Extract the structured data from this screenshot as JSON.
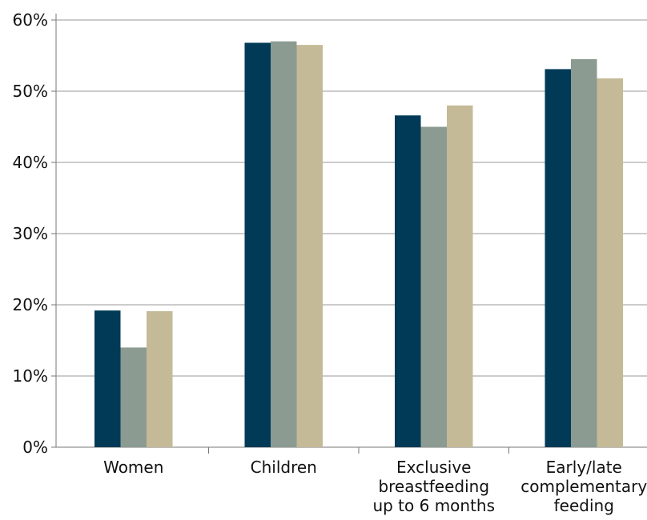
{
  "chart_data": {
    "type": "bar",
    "categories": [
      [
        "Women"
      ],
      [
        "Children"
      ],
      [
        "Exclusive",
        "breastfeeding",
        "up to 6 months"
      ],
      [
        "Early/late",
        "complementary",
        "feeding"
      ]
    ],
    "series": [
      {
        "values": [
          19.2,
          56.8,
          46.6,
          53.1
        ]
      },
      {
        "values": [
          14.0,
          57.0,
          45.0,
          54.5
        ]
      },
      {
        "values": [
          19.1,
          56.5,
          48.0,
          51.8
        ]
      }
    ],
    "ylim": [
      0,
      60
    ],
    "yticks": [
      "0%",
      "10%",
      "20%",
      "30%",
      "40%",
      "50%",
      "60%"
    ],
    "grid": true,
    "colors": [
      "#003a57",
      "#8b9b91",
      "#c4ba97"
    ]
  }
}
